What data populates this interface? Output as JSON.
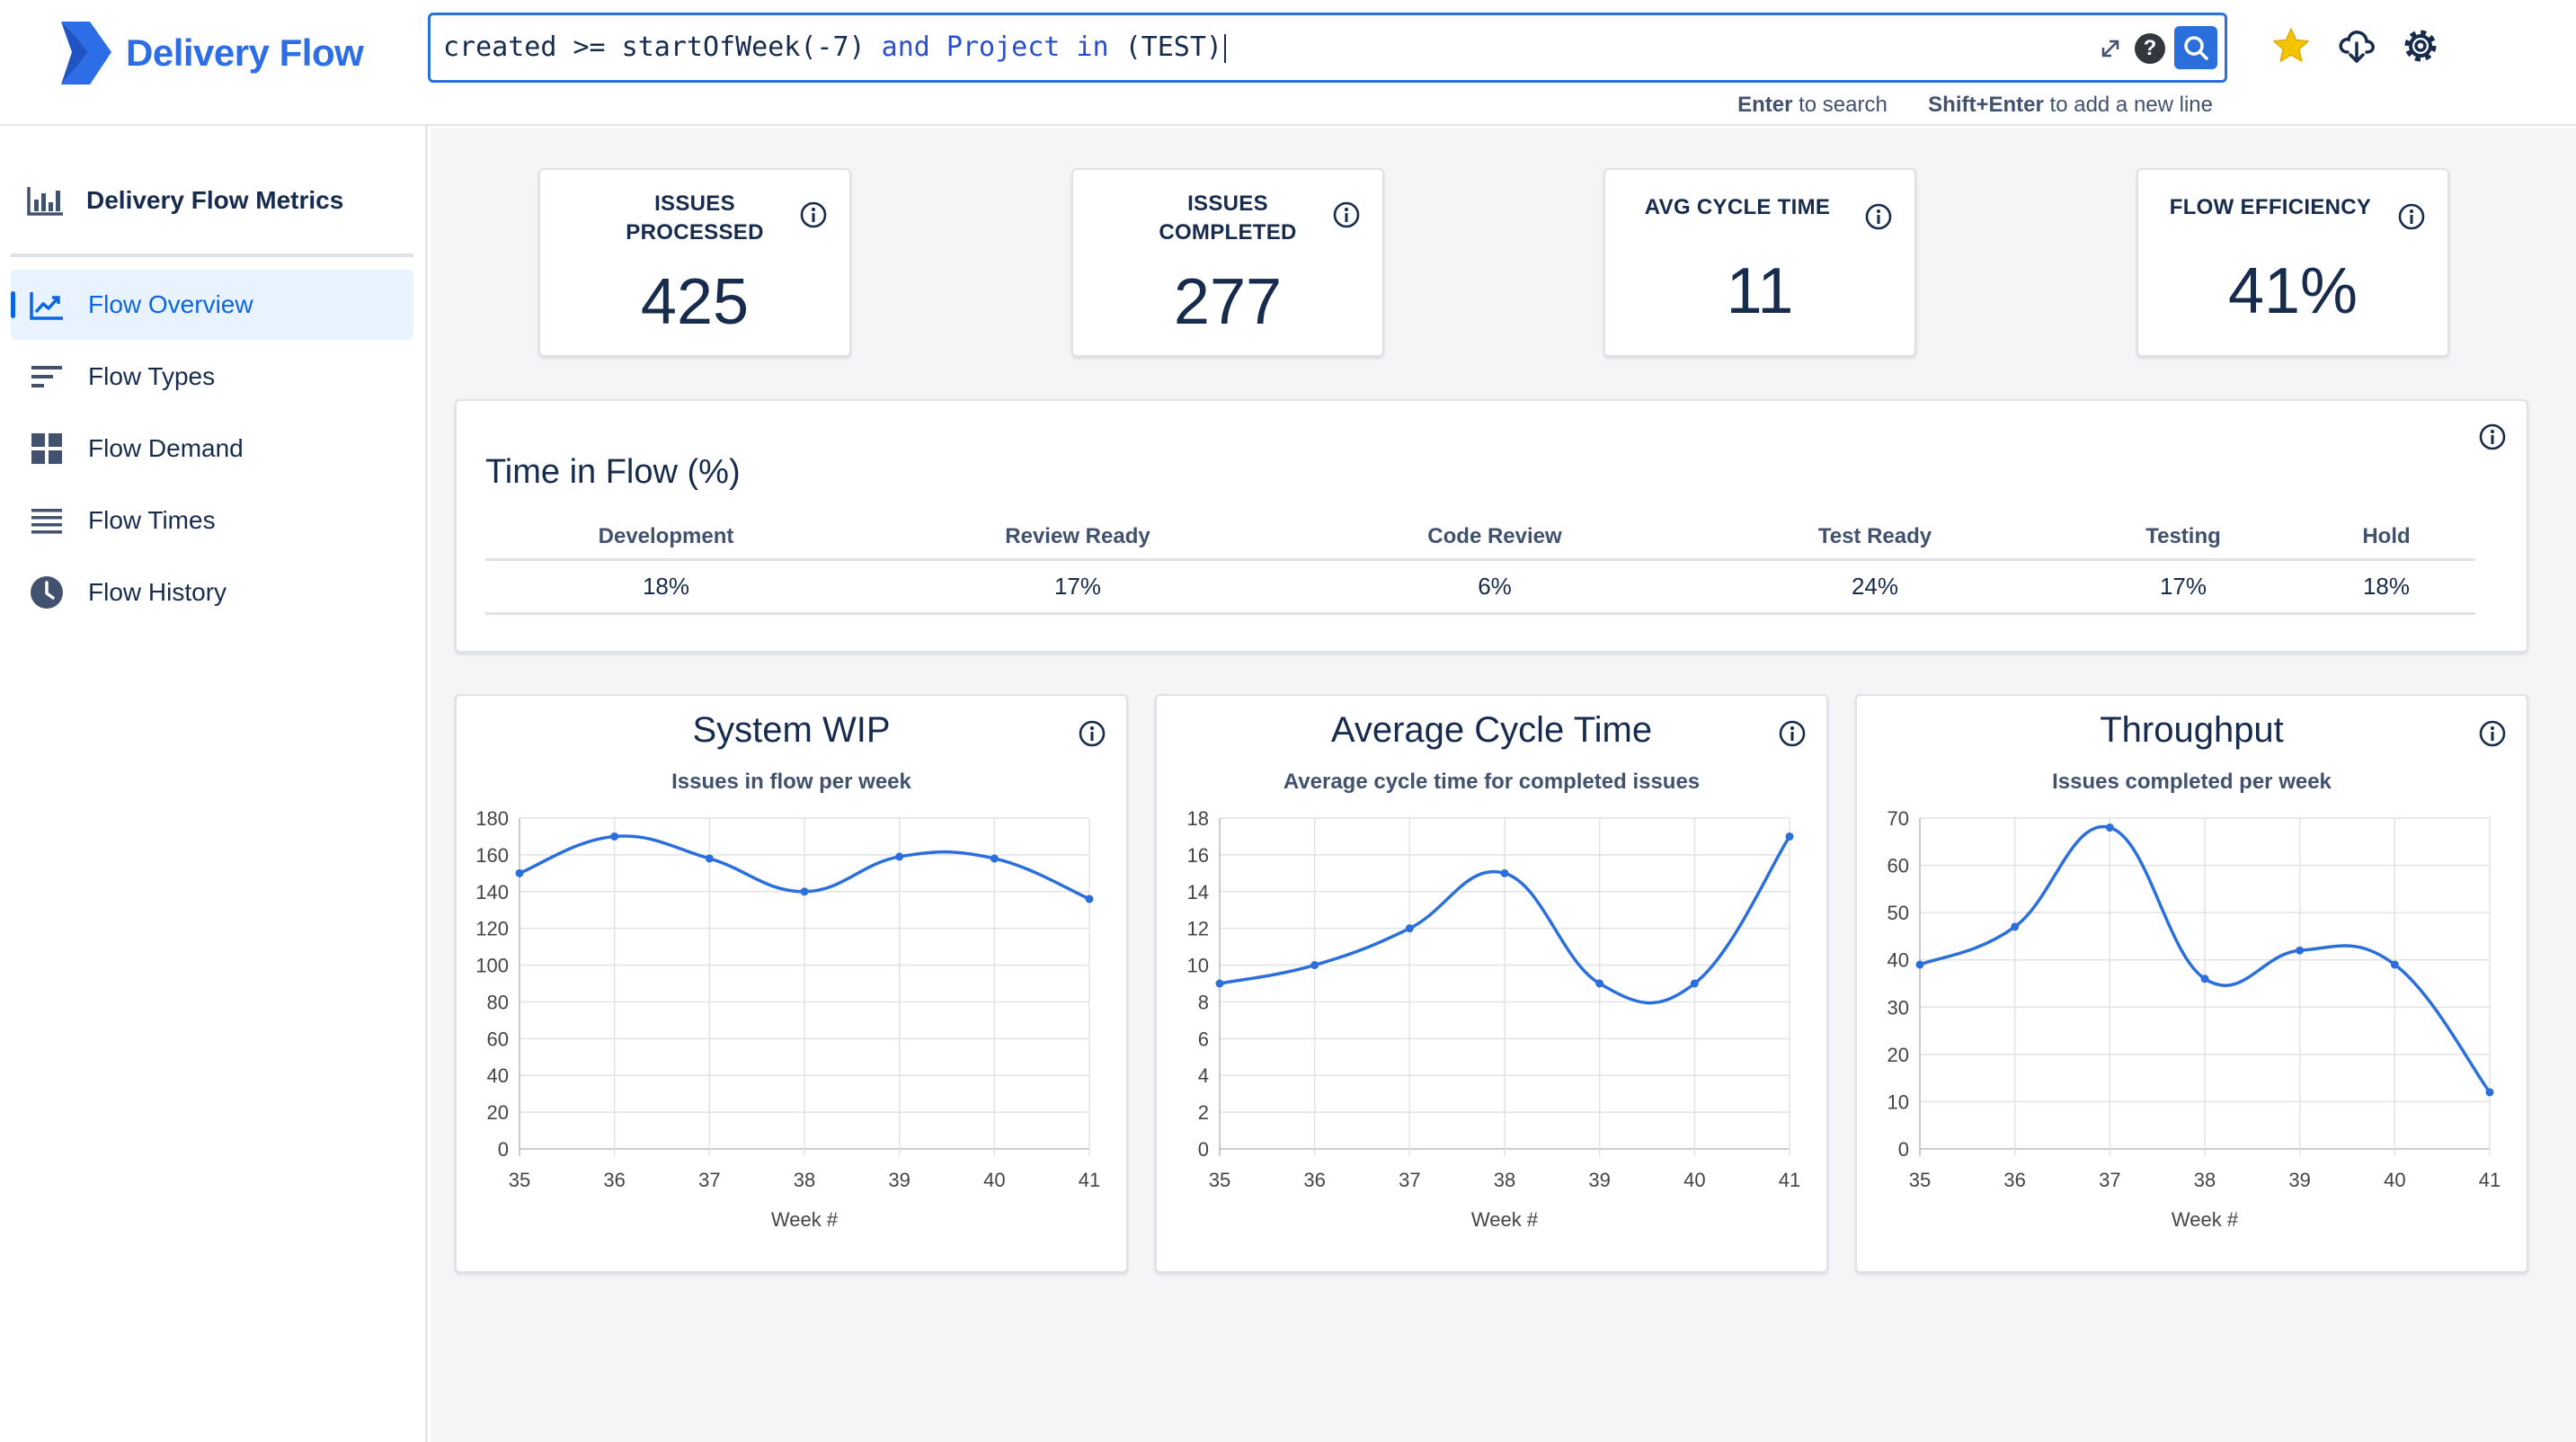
{
  "app": {
    "name": "Delivery Flow",
    "brand_color": "#2c6ee8"
  },
  "search": {
    "query_parts": [
      {
        "text": "created >= startOfWeek(-7) ",
        "kind": "plain"
      },
      {
        "text": "and",
        "kind": "keyword"
      },
      {
        "text": " ",
        "kind": "plain"
      },
      {
        "text": "Project",
        "kind": "keyword"
      },
      {
        "text": " ",
        "kind": "plain"
      },
      {
        "text": "in",
        "kind": "keyword"
      },
      {
        "text": " (TEST)",
        "kind": "plain"
      }
    ],
    "help_label": "?",
    "hint_enter_key": "Enter",
    "hint_enter_text": "to search",
    "hint_shift_key": "Shift+Enter",
    "hint_shift_text": "to add a new line"
  },
  "header_icons": [
    "star-icon",
    "cloud-download-icon",
    "gear-icon"
  ],
  "sidebar": {
    "title": "Delivery Flow Metrics",
    "items": [
      {
        "label": "Flow Overview",
        "icon": "line-chart-icon",
        "active": true
      },
      {
        "label": "Flow Types",
        "icon": "sort-lines-icon",
        "active": false
      },
      {
        "label": "Flow Demand",
        "icon": "grid-icon",
        "active": false
      },
      {
        "label": "Flow Times",
        "icon": "list-lines-icon",
        "active": false
      },
      {
        "label": "Flow History",
        "icon": "clock-icon",
        "active": false
      }
    ]
  },
  "kpis": [
    {
      "label": "ISSUES PROCESSED",
      "value": "425"
    },
    {
      "label": "ISSUES COMPLETED",
      "value": "277"
    },
    {
      "label": "AVG CYCLE TIME",
      "value": "11"
    },
    {
      "label": "FLOW EFFICIENCY",
      "value": "41%"
    }
  ],
  "time_in_flow": {
    "title": "Time in Flow (%)",
    "columns": [
      "Development",
      "Review Ready",
      "Code Review",
      "Test Ready",
      "Testing",
      "Hold"
    ],
    "values": [
      "18%",
      "17%",
      "6%",
      "24%",
      "17%",
      "18%"
    ]
  },
  "chart_data": [
    {
      "type": "line",
      "title": "System WIP",
      "subtitle": "Issues in flow per week",
      "xlabel": "Week #",
      "ylabel": "",
      "x": [
        35,
        36,
        37,
        38,
        39,
        40,
        41
      ],
      "values": [
        150,
        170,
        158,
        140,
        159,
        158,
        136
      ],
      "ylim": [
        0,
        180
      ],
      "yticks": [
        0,
        20,
        40,
        60,
        80,
        100,
        120,
        140,
        160,
        180
      ],
      "color": "#2a6fdb",
      "grid": true
    },
    {
      "type": "line",
      "title": "Average Cycle Time",
      "subtitle": "Average cycle time for completed issues",
      "xlabel": "Week #",
      "ylabel": "",
      "x": [
        35,
        36,
        37,
        38,
        39,
        40,
        41
      ],
      "values": [
        9,
        10,
        12,
        15,
        9,
        9,
        17
      ],
      "ylim": [
        0,
        18
      ],
      "yticks": [
        0,
        2,
        4,
        6,
        8,
        10,
        12,
        14,
        16,
        18
      ],
      "color": "#2a6fdb",
      "grid": true
    },
    {
      "type": "line",
      "title": "Throughput",
      "subtitle": "Issues completed per week",
      "xlabel": "Week #",
      "ylabel": "",
      "x": [
        35,
        36,
        37,
        38,
        39,
        40,
        41
      ],
      "values": [
        39,
        47,
        68,
        36,
        42,
        39,
        12
      ],
      "ylim": [
        0,
        70
      ],
      "yticks": [
        0,
        10,
        20,
        30,
        40,
        50,
        60,
        70
      ],
      "color": "#2a6fdb",
      "grid": true
    }
  ]
}
